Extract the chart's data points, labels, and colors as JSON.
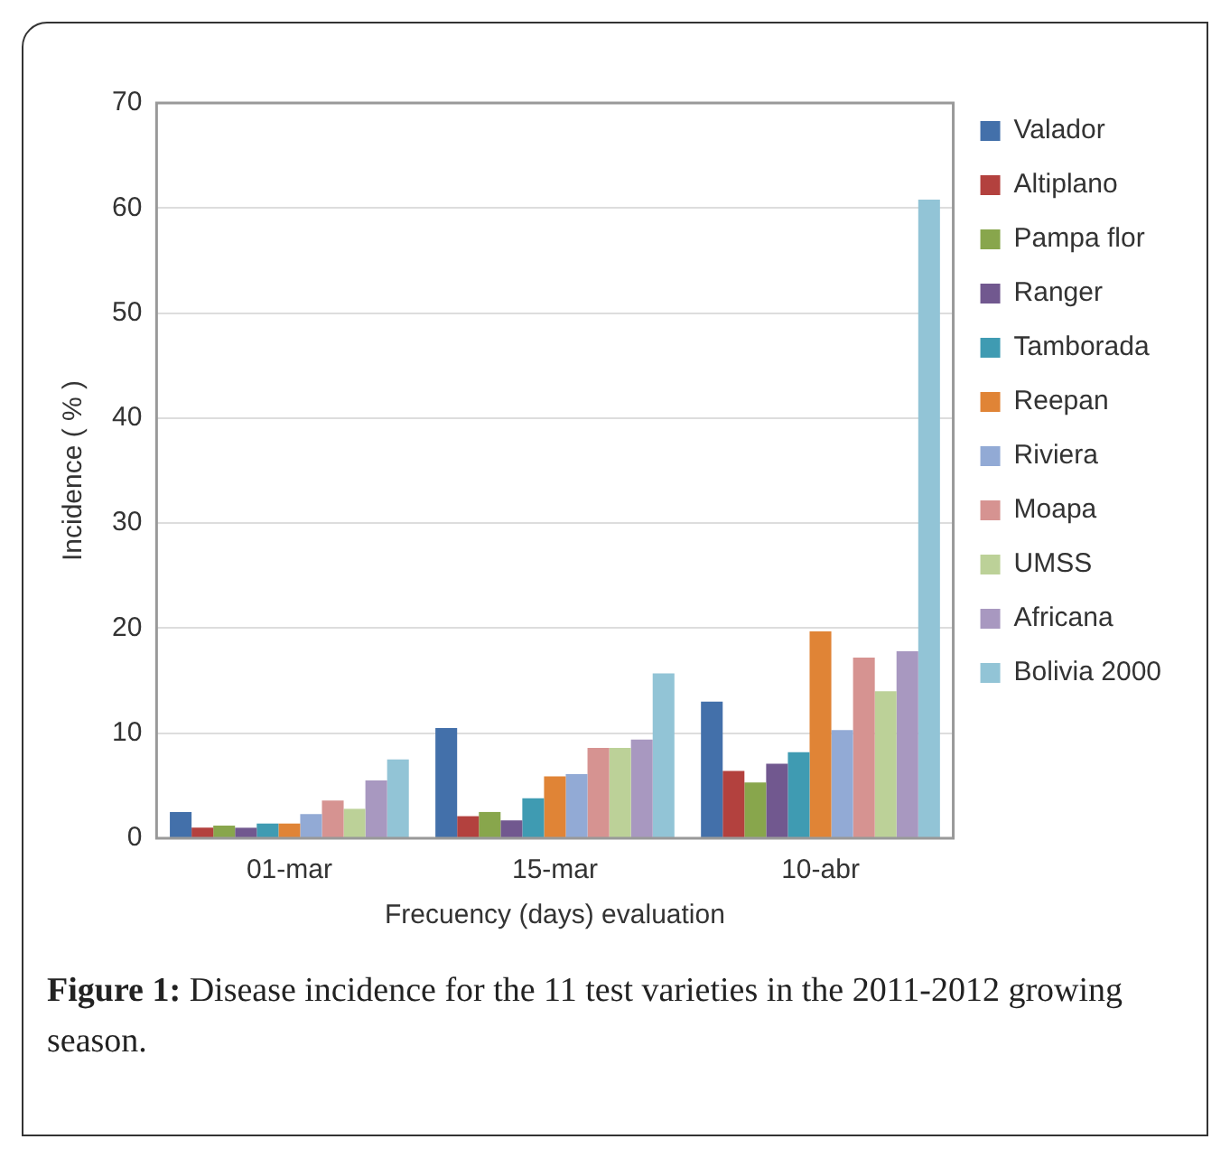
{
  "chart_data": {
    "type": "bar",
    "xlabel": "Frecuency (days) evaluation",
    "ylabel": "Incidence ( % )",
    "categories": [
      "01-mar",
      "15-mar",
      "10-abr"
    ],
    "series": [
      {
        "name": "Valador",
        "color": "#4370aa",
        "values": [
          2.5,
          10.5,
          13
        ]
      },
      {
        "name": "Altiplano",
        "color": "#b3413e",
        "values": [
          1,
          2.1,
          6.4
        ]
      },
      {
        "name": "Pampa flor",
        "color": "#88a64c",
        "values": [
          1.2,
          2.5,
          5.3
        ]
      },
      {
        "name": "Ranger",
        "color": "#71588f",
        "values": [
          1,
          1.7,
          7.1
        ]
      },
      {
        "name": "Tamborada",
        "color": "#3f9bb2",
        "values": [
          1.4,
          3.8,
          8.2
        ]
      },
      {
        "name": "Reepan",
        "color": "#e08436",
        "values": [
          1.4,
          5.9,
          19.7
        ]
      },
      {
        "name": "Riviera",
        "color": "#92aad5",
        "values": [
          2.3,
          6.1,
          10.3
        ]
      },
      {
        "name": "Moapa",
        "color": "#d69391",
        "values": [
          3.6,
          8.6,
          17.2
        ]
      },
      {
        "name": "UMSS",
        "color": "#bcd198",
        "values": [
          2.8,
          8.6,
          14
        ]
      },
      {
        "name": "Africana",
        "color": "#a898c0",
        "values": [
          5.5,
          9.4,
          17.8
        ]
      },
      {
        "name": "Bolivia 2000",
        "color": "#92c4d6",
        "values": [
          7.5,
          15.7,
          60.8
        ]
      }
    ],
    "ylim": [
      0,
      70
    ],
    "yticks": [
      0,
      10,
      20,
      30,
      40,
      50,
      60,
      70
    ],
    "grid": "y",
    "legend": "right",
    "annotations": [
      "Figure 1: Disease incidence for the 11 test varieties in the 2011-2012 growing season."
    ]
  }
}
